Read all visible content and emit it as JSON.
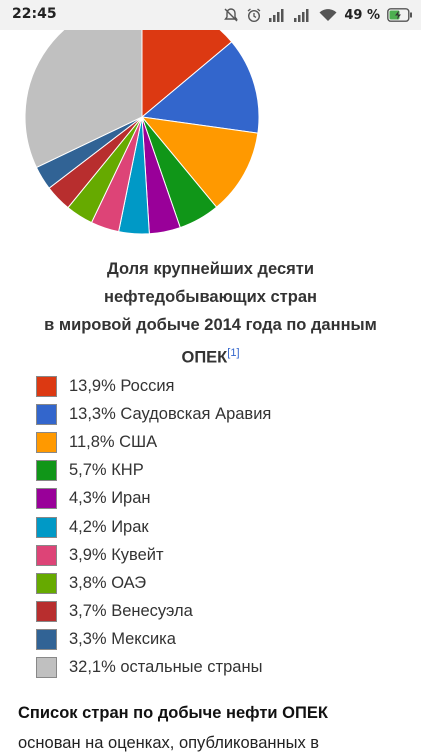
{
  "status_bar": {
    "time": "22:45",
    "battery_text": "49 %",
    "icons": [
      "mute-icon",
      "alarm-icon",
      "signal-icon",
      "signal-icon",
      "wifi-icon",
      "battery-charging-icon"
    ]
  },
  "chart_data": {
    "type": "pie",
    "caption_lines": [
      "Доля крупнейших десяти",
      "нефтедобывающих стран",
      "в мировой добыче 2014 года по данным",
      "ОПЕК"
    ],
    "caption_ref": "[1]",
    "slices": [
      {
        "label": "13,9% Россия",
        "value": 13.9,
        "color": "#dc3912"
      },
      {
        "label": "13,3% Саудовская Аравия",
        "value": 13.3,
        "color": "#3366cc"
      },
      {
        "label": "11,8% США",
        "value": 11.8,
        "color": "#ff9900"
      },
      {
        "label": "5,7% КНР",
        "value": 5.7,
        "color": "#109618"
      },
      {
        "label": "4,3% Иран",
        "value": 4.3,
        "color": "#990099"
      },
      {
        "label": "4,2% Ирак",
        "value": 4.2,
        "color": "#0099c6"
      },
      {
        "label": "3,9% Кувейт",
        "value": 3.9,
        "color": "#dd4477"
      },
      {
        "label": "3,8% ОАЭ",
        "value": 3.8,
        "color": "#66aa00"
      },
      {
        "label": "3,7% Венесуэла",
        "value": 3.7,
        "color": "#b82e2e"
      },
      {
        "label": "3,3% Мексика",
        "value": 3.3,
        "color": "#316395"
      },
      {
        "label": "32,1% остальные страны",
        "value": 32.1,
        "color": "#c0c0c0"
      }
    ]
  },
  "section": {
    "title": "Список стран по добыче нефти ОПЕК",
    "text": "основан на оценках, опубликованных в"
  }
}
